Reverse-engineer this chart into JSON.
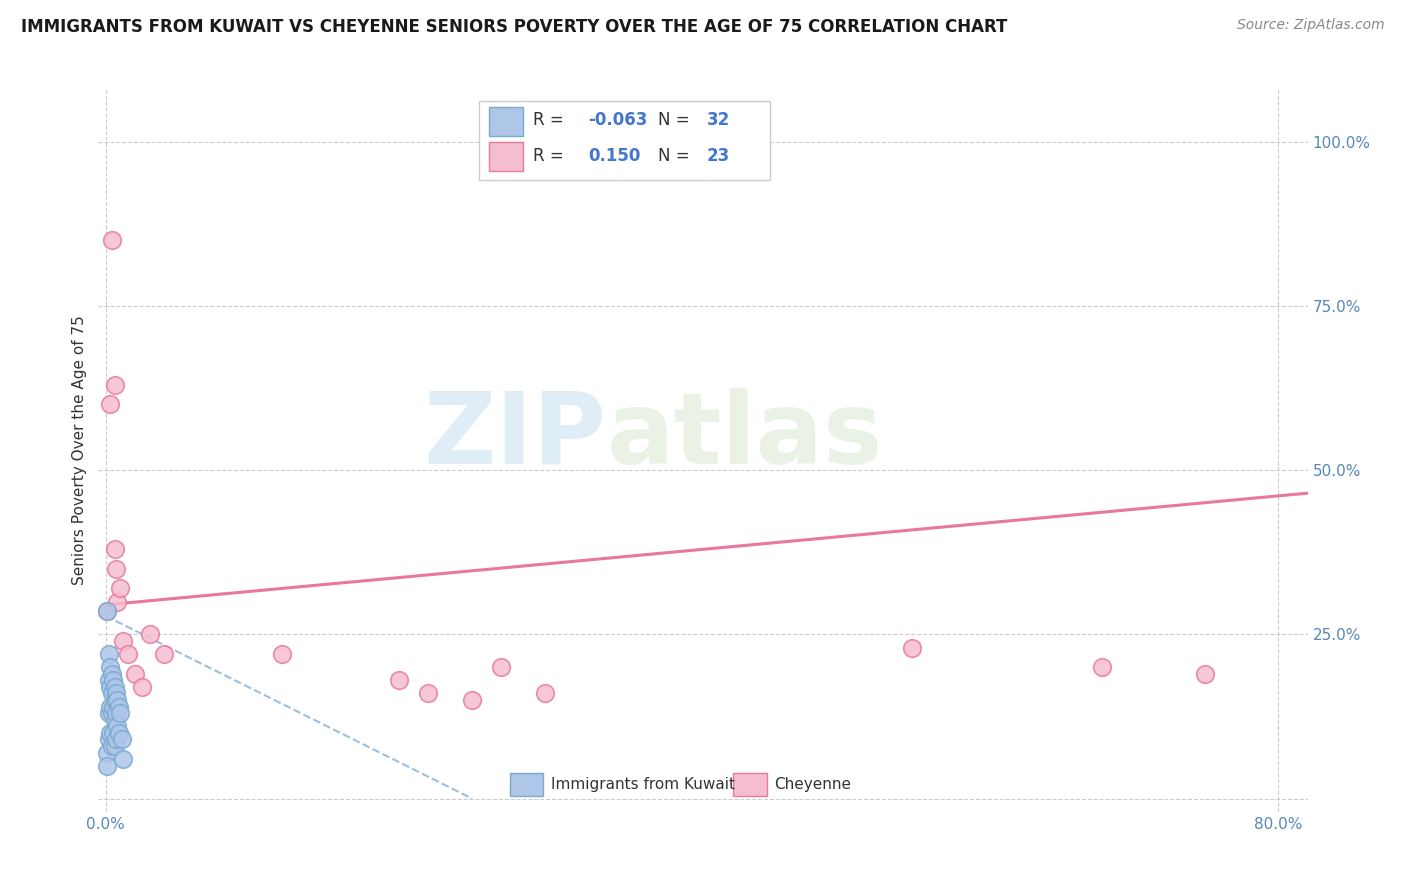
{
  "title": "IMMIGRANTS FROM KUWAIT VS CHEYENNE SENIORS POVERTY OVER THE AGE OF 75 CORRELATION CHART",
  "source": "Source: ZipAtlas.com",
  "ylabel": "Seniors Poverty Over the Age of 75",
  "legend_R1": "-0.063",
  "legend_N1": "32",
  "legend_R2": "0.150",
  "legend_N2": "23",
  "blue_color": "#aec6e8",
  "pink_color": "#f5bdd0",
  "blue_edge_color": "#7aaad0",
  "pink_edge_color": "#e87a9f",
  "blue_line_color": "#8ab4d8",
  "pink_line_color": "#e8799a",
  "watermark_zip": "ZIP",
  "watermark_atlas": "atlas",
  "xlim": [
    -0.005,
    0.82
  ],
  "ylim": [
    -0.02,
    1.08
  ],
  "blue_scatter_x": [
    0.001,
    0.001,
    0.001,
    0.002,
    0.002,
    0.002,
    0.002,
    0.003,
    0.003,
    0.003,
    0.003,
    0.004,
    0.004,
    0.004,
    0.004,
    0.005,
    0.005,
    0.005,
    0.006,
    0.006,
    0.006,
    0.006,
    0.007,
    0.007,
    0.007,
    0.008,
    0.008,
    0.009,
    0.009,
    0.01,
    0.011,
    0.012
  ],
  "blue_scatter_y": [
    0.285,
    0.07,
    0.05,
    0.22,
    0.18,
    0.13,
    0.09,
    0.2,
    0.17,
    0.14,
    0.1,
    0.19,
    0.16,
    0.13,
    0.08,
    0.18,
    0.14,
    0.1,
    0.17,
    0.15,
    0.12,
    0.08,
    0.16,
    0.13,
    0.09,
    0.15,
    0.11,
    0.14,
    0.1,
    0.13,
    0.09,
    0.06
  ],
  "pink_scatter_x": [
    0.001,
    0.003,
    0.004,
    0.006,
    0.006,
    0.007,
    0.008,
    0.01,
    0.012,
    0.015,
    0.02,
    0.025,
    0.03,
    0.04,
    0.12,
    0.2,
    0.22,
    0.25,
    0.27,
    0.3,
    0.55,
    0.68,
    0.75
  ],
  "pink_scatter_y": [
    0.285,
    0.6,
    0.85,
    0.63,
    0.38,
    0.35,
    0.3,
    0.32,
    0.24,
    0.22,
    0.19,
    0.17,
    0.25,
    0.22,
    0.22,
    0.18,
    0.16,
    0.15,
    0.2,
    0.16,
    0.23,
    0.2,
    0.19
  ],
  "pink_trendline_x": [
    0.0,
    0.82
  ],
  "pink_trendline_y": [
    0.295,
    0.465
  ],
  "blue_trendline_x": [
    0.0,
    0.25
  ],
  "blue_trendline_y": [
    0.278,
    0.0
  ],
  "title_fontsize": 12,
  "source_fontsize": 10,
  "ylabel_fontsize": 11,
  "tick_fontsize": 11,
  "legend_fontsize": 12
}
